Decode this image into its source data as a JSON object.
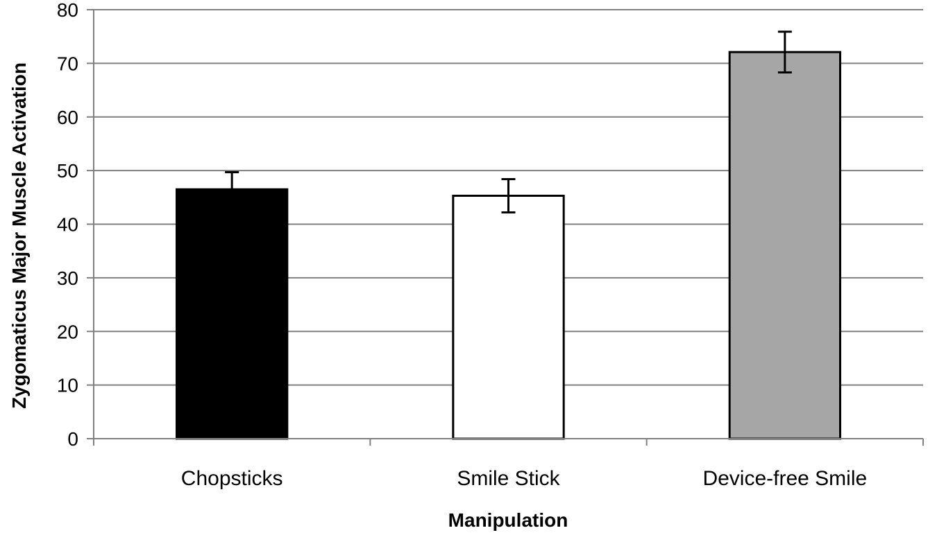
{
  "chart_data": {
    "type": "bar",
    "title": "",
    "xlabel": "Manipulation",
    "ylabel": "Zygomaticus Major Muscle Activation",
    "categories": [
      "Chopsticks",
      "Smile Stick",
      "Device-free Smile"
    ],
    "values": [
      46.5,
      45.3,
      72.1
    ],
    "error": [
      3.2,
      3.1,
      3.8
    ],
    "bar_colors": [
      "#000000",
      "#ffffff",
      "#a6a6a6"
    ],
    "ylim": [
      0,
      80
    ],
    "yticks": [
      0,
      10,
      20,
      30,
      40,
      50,
      60,
      70,
      80
    ],
    "grid": true,
    "legend": "none"
  }
}
